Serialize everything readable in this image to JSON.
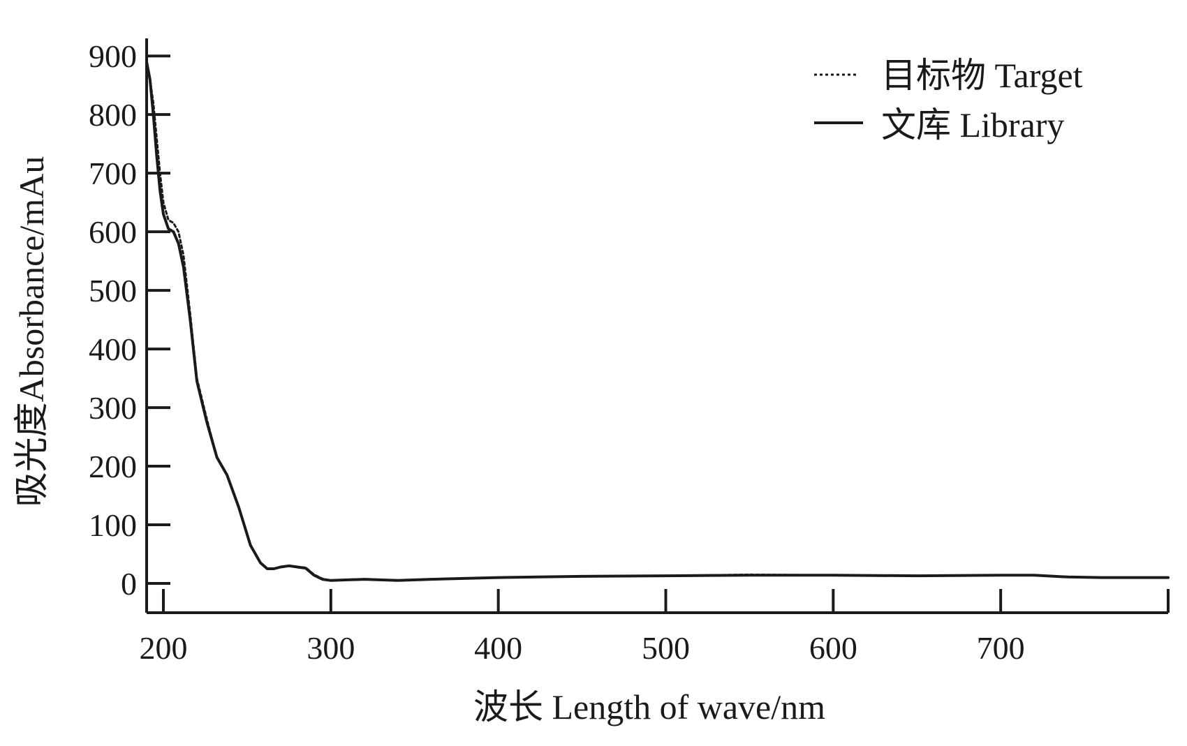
{
  "chart_data": {
    "type": "line",
    "xlabel": "波长 Length of wave/nm",
    "ylabel": "吸光度Absorbance/mAu",
    "xlim": [
      190,
      800
    ],
    "ylim": [
      -50,
      930
    ],
    "x_ticks": [
      200,
      300,
      400,
      500,
      600,
      700
    ],
    "y_ticks": [
      0,
      100,
      200,
      300,
      400,
      500,
      600,
      700,
      800,
      900
    ],
    "grid": false,
    "legend_position": "top-right",
    "colors": {
      "axis": "#1a1a1a",
      "line": "#1a1a1a"
    },
    "series": [
      {
        "name": "目标物 Target",
        "style": "dotted",
        "x": [
          190,
          192,
          194,
          196,
          198,
          200,
          203,
          206,
          209,
          212,
          216,
          220,
          226,
          232,
          238,
          245,
          252,
          258,
          262,
          266,
          270,
          275,
          280,
          285,
          290,
          295,
          300,
          320,
          340,
          360,
          400,
          450,
          500,
          550,
          600,
          650,
          700,
          720,
          740,
          760,
          780,
          800
        ],
        "y": [
          870,
          860,
          820,
          760,
          700,
          650,
          620,
          615,
          600,
          560,
          460,
          350,
          280,
          215,
          185,
          130,
          65,
          35,
          25,
          25,
          28,
          30,
          28,
          27,
          15,
          8,
          5,
          7,
          5,
          7,
          10,
          12,
          13,
          15,
          14,
          13,
          14,
          14,
          11,
          10,
          10,
          10
        ]
      },
      {
        "name": "文库 Library",
        "style": "solid",
        "x": [
          190,
          192,
          194,
          196,
          198,
          200,
          203,
          206,
          209,
          212,
          216,
          220,
          226,
          232,
          238,
          245,
          252,
          258,
          262,
          266,
          270,
          275,
          280,
          285,
          290,
          295,
          300,
          320,
          340,
          360,
          400,
          450,
          500,
          550,
          600,
          650,
          700,
          720,
          740,
          760,
          780,
          800
        ],
        "y": [
          890,
          860,
          800,
          730,
          670,
          630,
          605,
          600,
          580,
          540,
          450,
          345,
          275,
          215,
          185,
          130,
          65,
          35,
          25,
          25,
          28,
          30,
          28,
          26,
          14,
          7,
          5,
          7,
          5,
          7,
          10,
          12,
          13,
          14,
          14,
          13,
          14,
          14,
          11,
          10,
          10,
          10
        ]
      }
    ]
  }
}
